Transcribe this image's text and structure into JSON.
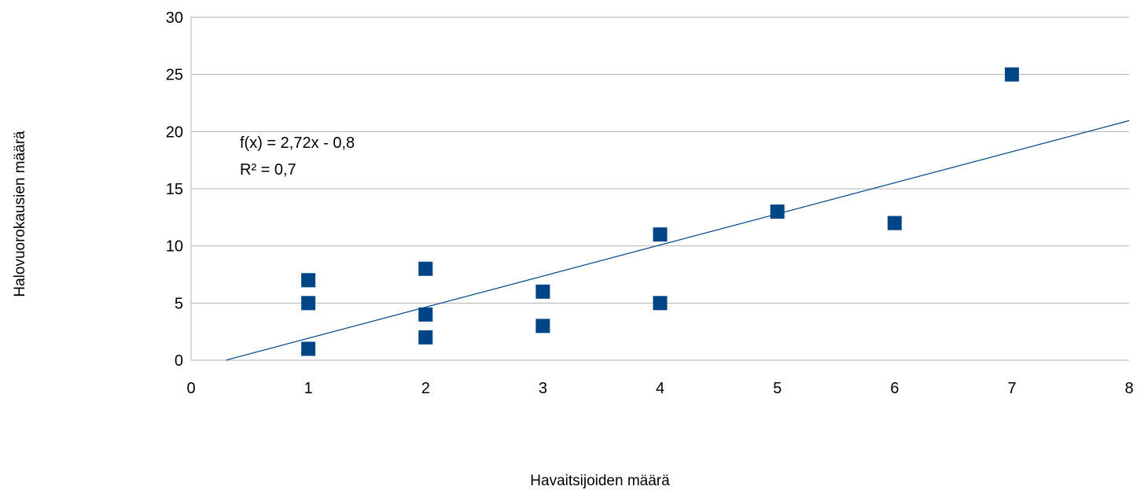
{
  "chart_data": {
    "type": "scatter",
    "xlabel": "Havaitsijoiden määrä",
    "ylabel": "Halovuorokausien määrä",
    "xlim": [
      0,
      8
    ],
    "ylim": [
      0,
      30
    ],
    "x_ticks": [
      "0",
      "1",
      "2",
      "3",
      "4",
      "5",
      "6",
      "7",
      "8"
    ],
    "y_ticks": [
      "0",
      "5",
      "10",
      "15",
      "20",
      "25",
      "30"
    ],
    "grid": "horizontal",
    "marker": "square",
    "colors": {
      "marker": "#004586",
      "trendline": "#004586",
      "grid": "#b3b3b3"
    },
    "points": [
      {
        "x": 1,
        "y": 1
      },
      {
        "x": 1,
        "y": 5
      },
      {
        "x": 1,
        "y": 7
      },
      {
        "x": 2,
        "y": 2
      },
      {
        "x": 2,
        "y": 4
      },
      {
        "x": 2,
        "y": 8
      },
      {
        "x": 3,
        "y": 3
      },
      {
        "x": 3,
        "y": 6
      },
      {
        "x": 4,
        "y": 5
      },
      {
        "x": 4,
        "y": 11
      },
      {
        "x": 5,
        "y": 13
      },
      {
        "x": 6,
        "y": 12
      },
      {
        "x": 7,
        "y": 25
      }
    ],
    "trendline": {
      "slope": 2.72,
      "intercept": -0.8,
      "x_range": [
        0.3,
        8
      ]
    },
    "annotation": {
      "equation": "f(x) = 2,72x - 0,8",
      "r_squared": "R² = 0,7"
    }
  }
}
